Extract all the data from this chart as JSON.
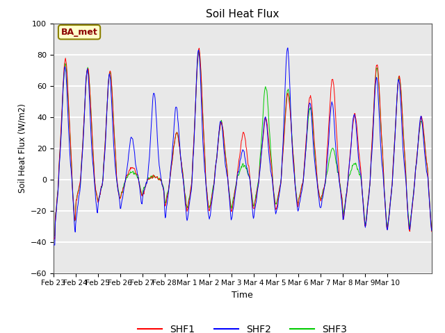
{
  "title": "Soil Heat Flux",
  "xlabel": "Time",
  "ylabel": "Soil Heat Flux (W/m2)",
  "ylim": [
    -60,
    100
  ],
  "xlim": [
    0,
    408
  ],
  "background_color": "#e8e8e8",
  "grid_color": "white",
  "annotation_text": "BA_met",
  "annotation_box_facecolor": "#ffffcc",
  "annotation_box_edgecolor": "#8b8000",
  "colors": {
    "SHF1": "#ff0000",
    "SHF2": "#0000ff",
    "SHF3": "#00cc00"
  },
  "tick_labels": [
    "Feb 23",
    "Feb 24",
    "Feb 25",
    "Feb 26",
    "Feb 27",
    "Feb 28",
    "Mar 1",
    "Mar 2",
    "Mar 3",
    "Mar 4",
    "Mar 5",
    "Mar 6",
    "Mar 7",
    "Mar 8",
    "Mar 9",
    "Mar 10"
  ],
  "tick_positions": [
    0,
    24,
    48,
    72,
    96,
    120,
    144,
    168,
    192,
    216,
    240,
    264,
    288,
    312,
    336,
    360
  ],
  "yticks": [
    -60,
    -40,
    -20,
    0,
    20,
    40,
    60,
    80,
    100
  ],
  "linewidth": 0.7
}
